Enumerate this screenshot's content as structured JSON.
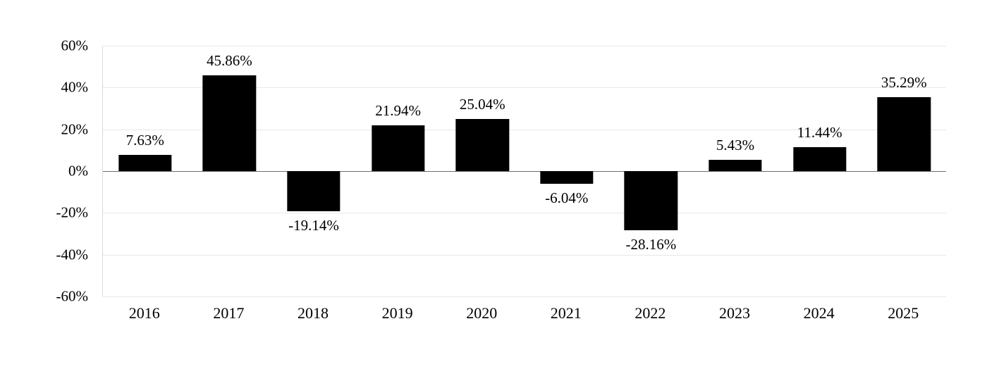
{
  "chart_data": {
    "type": "bar",
    "title": "",
    "xlabel": "",
    "ylabel": "",
    "categories": [
      "2016",
      "2017",
      "2018",
      "2019",
      "2020",
      "2021",
      "2022",
      "2023",
      "2024",
      "2025"
    ],
    "values": [
      7.63,
      45.86,
      -19.14,
      21.94,
      25.04,
      -6.04,
      -28.16,
      5.43,
      11.44,
      35.29
    ],
    "value_labels": [
      "7.63%",
      "45.86%",
      "-19.14%",
      "21.94%",
      "25.04%",
      "-6.04%",
      "-28.16%",
      "5.43%",
      "11.44%",
      "35.29%"
    ],
    "ylim": [
      -60,
      60
    ],
    "yticks": [
      60,
      40,
      20,
      0,
      -20,
      -40,
      -60
    ],
    "ytick_labels": [
      "60%",
      "40%",
      "20%",
      "0%",
      "-20%",
      "-40%",
      "-60%"
    ],
    "grid": true,
    "legend": "none",
    "colors": {
      "bar": "#000000",
      "gridline": "#e8e8e8",
      "zero_line": "#6e6e6e",
      "axis_line": "#d9d9d9",
      "text": "#000000",
      "background": "#ffffff"
    }
  }
}
